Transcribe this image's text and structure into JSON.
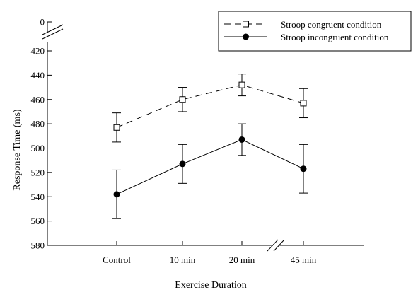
{
  "chart_data": {
    "type": "line",
    "title": "",
    "xlabel": "Exercise Duration",
    "ylabel": "Response Time (ms)",
    "categories": [
      "Control",
      "10 min",
      "20 min",
      "45 min"
    ],
    "y_axis": {
      "inverted": true,
      "broken": true,
      "break_between": [
        0,
        420
      ],
      "lower_segment_ticks": [
        0
      ],
      "main_range": [
        420,
        580
      ],
      "main_ticks": [
        420,
        440,
        460,
        480,
        500,
        520,
        540,
        560,
        580
      ]
    },
    "x_axis": {
      "broken_between": [
        "20 min",
        "45 min"
      ]
    },
    "series": [
      {
        "name": "Stroop congruent condition",
        "marker": "open-square",
        "line_style": "dashed",
        "values": [
          483,
          460,
          448,
          463
        ],
        "error": [
          12,
          10,
          9,
          12
        ]
      },
      {
        "name": "Stroop incongruent condition",
        "marker": "filled-circle",
        "line_style": "solid",
        "values": [
          538,
          513,
          493,
          517
        ],
        "error": [
          20,
          16,
          13,
          20
        ]
      }
    ],
    "legend": {
      "placement": "top-right"
    },
    "grid": false
  }
}
